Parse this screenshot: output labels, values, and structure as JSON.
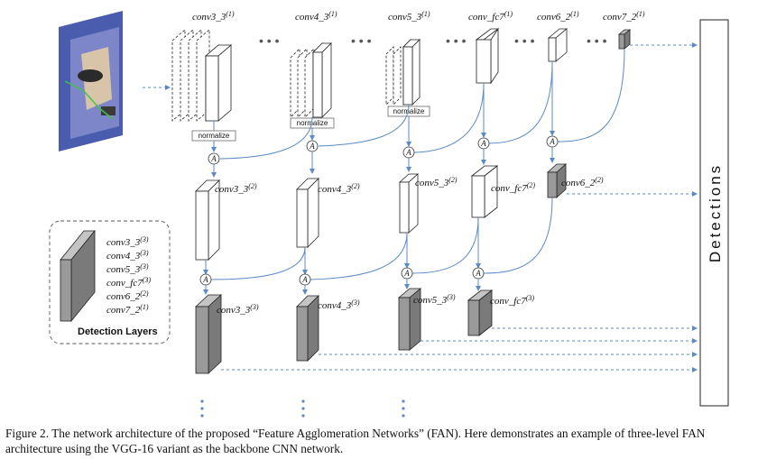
{
  "top_labels": [
    {
      "name": "conv3_3",
      "sup": "(1)"
    },
    {
      "name": "conv4_3",
      "sup": "(1)"
    },
    {
      "name": "conv5_3",
      "sup": "(1)"
    },
    {
      "name": "conv_fc7",
      "sup": "(1)"
    },
    {
      "name": "conv6_2",
      "sup": "(1)"
    },
    {
      "name": "conv7_2",
      "sup": "(1)"
    }
  ],
  "mid_labels": [
    {
      "name": "conv3_3",
      "sup": "(2)"
    },
    {
      "name": "conv4_3",
      "sup": "(2)"
    },
    {
      "name": "conv5_3",
      "sup": "(2)"
    },
    {
      "name": "conv_fc7",
      "sup": "(2)"
    },
    {
      "name": "conv6_2",
      "sup": "(2)"
    }
  ],
  "bottom_labels": [
    {
      "name": "conv3_3",
      "sup": "(3)"
    },
    {
      "name": "conv4_3",
      "sup": "(3)"
    },
    {
      "name": "conv5_3",
      "sup": "(3)"
    },
    {
      "name": "conv_fc7",
      "sup": "(3)"
    }
  ],
  "normalize_label": "normalize",
  "agg_symbol": "A",
  "ellipsis": "• • •",
  "detections_label": "Detections",
  "legend": {
    "title": "Detection Layers",
    "items": [
      {
        "name": "conv3_3",
        "sup": "(3)"
      },
      {
        "name": "conv4_3",
        "sup": "(3)"
      },
      {
        "name": "conv5_3",
        "sup": "(3)"
      },
      {
        "name": "conv_fc7",
        "sup": "(3)"
      },
      {
        "name": "conv6_2",
        "sup": "(2)"
      },
      {
        "name": "conv7_2",
        "sup": "(1)"
      }
    ]
  },
  "caption": "Figure 2. The network architecture of the proposed “Feature Agglomeration Networks” (FAN). Here demonstrates an example of three-level FAN architecture using the VGG-16 variant as the backbone CNN network.",
  "colors": {
    "accent": "#5b8ac6",
    "detection_fill": "#9a9a9a",
    "box_fill": "#ffffff"
  }
}
